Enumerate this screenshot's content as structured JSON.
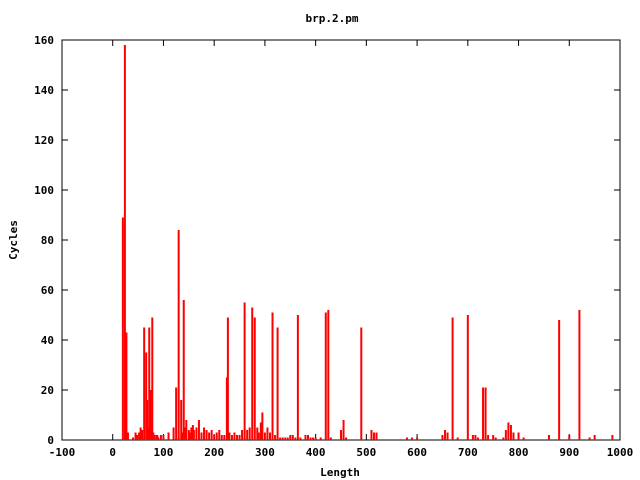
{
  "chart_data": {
    "type": "bar",
    "title": "brp.2.pm",
    "xlabel": "Length",
    "ylabel": "Cycles",
    "xlim": [
      -100,
      1000
    ],
    "ylim": [
      0,
      160
    ],
    "x_ticks": [
      "-100",
      "0",
      "100",
      "200",
      "300",
      "400",
      "500",
      "600",
      "700",
      "800",
      "900",
      "1000"
    ],
    "y_ticks": [
      "0",
      "20",
      "40",
      "60",
      "80",
      "100",
      "120",
      "140",
      "160"
    ],
    "bar_color": "#ff0000",
    "grid": false,
    "legend": "none",
    "series": [
      {
        "x": [
          20,
          24,
          27,
          30,
          40,
          45,
          48,
          52,
          55,
          58,
          62,
          66,
          68,
          70,
          72,
          75,
          78,
          80,
          82,
          86,
          88,
          90,
          95,
          100,
          110,
          120,
          125,
          130,
          135,
          138,
          140,
          142,
          145,
          150,
          152,
          155,
          158,
          160,
          165,
          170,
          175,
          180,
          185,
          190,
          195,
          200,
          205,
          210,
          215,
          220,
          225,
          227,
          230,
          235,
          240,
          245,
          250,
          255,
          260,
          265,
          270,
          275,
          280,
          285,
          288,
          292,
          295,
          300,
          305,
          310,
          315,
          320,
          325,
          330,
          335,
          340,
          345,
          350,
          355,
          360,
          365,
          370,
          380,
          385,
          390,
          395,
          400,
          410,
          420,
          425,
          430,
          450,
          455,
          460,
          490,
          510,
          515,
          520,
          580,
          590,
          600,
          650,
          655,
          660,
          670,
          680,
          700,
          710,
          715,
          720,
          730,
          735,
          740,
          750,
          755,
          770,
          775,
          780,
          785,
          790,
          800,
          810,
          860,
          880,
          900,
          920,
          940,
          950,
          985
        ],
        "values": [
          89,
          158,
          43,
          3,
          1,
          3,
          2,
          3,
          5,
          4,
          45,
          35,
          16,
          5,
          45,
          20,
          49,
          3,
          2,
          2,
          2,
          1,
          2,
          2,
          3,
          5,
          21,
          84,
          16,
          3,
          56,
          5,
          8,
          4,
          3,
          5,
          6,
          4,
          5,
          8,
          3,
          5,
          4,
          3,
          4,
          2,
          3,
          4,
          2,
          2,
          25,
          49,
          3,
          2,
          3,
          2,
          2,
          4,
          55,
          4,
          5,
          53,
          49,
          5,
          3,
          7,
          11,
          3,
          5,
          3,
          51,
          2,
          45,
          1,
          1,
          1,
          1,
          2,
          2,
          1,
          50,
          1,
          2,
          2,
          1,
          1,
          1,
          1,
          51,
          52,
          1,
          4,
          8,
          1,
          45,
          4,
          3,
          3,
          1,
          1,
          1,
          2,
          4,
          3,
          49,
          1,
          50,
          2,
          2,
          1,
          21,
          21,
          2,
          2,
          1,
          1,
          4,
          7,
          6,
          3,
          3,
          1,
          2,
          48,
          2,
          52,
          1,
          2,
          2
        ]
      }
    ]
  }
}
